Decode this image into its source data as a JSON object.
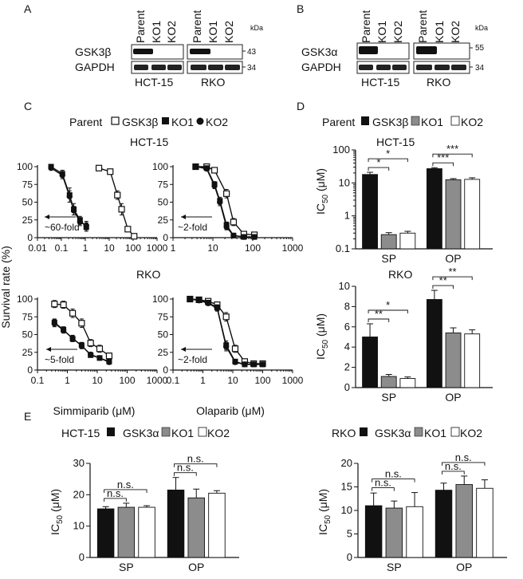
{
  "panels": {
    "A": {
      "letter": "A",
      "lanes": [
        "Parent",
        "KO1",
        "KO2",
        "Parent",
        "KO1",
        "KO2"
      ],
      "kda": "kDa",
      "bands": [
        {
          "label": "GSK3β",
          "kda": "43"
        },
        {
          "label": "GAPDH",
          "kda": "34"
        }
      ],
      "cell_lines": [
        "HCT-15",
        "RKO"
      ]
    },
    "B": {
      "letter": "B",
      "lanes": [
        "Parent",
        "KO1",
        "KO2",
        "Parent",
        "KO1",
        "KO2"
      ],
      "kda": "kDa",
      "bands": [
        {
          "label": "GSK3α",
          "kda": "55"
        },
        {
          "label": "GAPDH",
          "kda": "34"
        }
      ],
      "cell_lines": [
        "HCT-15",
        "RKO"
      ]
    },
    "C": {
      "letter": "C",
      "legend": [
        "Parent",
        "GSK3β",
        "KO1",
        "KO2"
      ],
      "ylabel": "Survival rate (%)",
      "row_titles": [
        "HCT-15",
        "RKO"
      ],
      "xlabels": [
        "Simmiparib (μM)",
        "Olaparib (μM)"
      ],
      "fold_labels": [
        "~60-fold",
        "~2-fold",
        "~5-fold",
        "~2-fold"
      ]
    },
    "D": {
      "letter": "D",
      "legend": [
        "Parent",
        "GSK3β",
        "KO1",
        "KO2"
      ],
      "ylabel": "IC",
      "ylabel_sub": "50",
      "ylabel_unit": " (μM)",
      "groups": [
        "SP",
        "OP"
      ],
      "row_titles": [
        "HCT-15",
        "RKO"
      ]
    },
    "E": {
      "letter": "E",
      "ylabel": "IC",
      "ylabel_sub": "50",
      "ylabel_unit": " (μM)",
      "groups": [
        "SP",
        "OP"
      ],
      "legends": [
        [
          "HCT-15",
          "GSK3α",
          "KO1",
          "KO2"
        ],
        [
          "RKO",
          "GSK3α",
          "KO1",
          "KO2"
        ]
      ]
    }
  },
  "colors": {
    "black": "#111111",
    "gray": "#8c8c8c",
    "white": "#ffffff"
  },
  "chart_data": [
    {
      "id": "C1",
      "type": "line",
      "xscale": "log",
      "xlim": [
        0.01,
        1000
      ],
      "ylim": [
        0,
        100
      ],
      "xticks": [
        "0.01",
        "0.1",
        "1",
        "10",
        "100",
        "1000"
      ],
      "yticks": [
        "0",
        "25",
        "50",
        "75",
        "100"
      ],
      "series": [
        {
          "name": "Parent",
          "marker": "square-open",
          "x": [
            3.7,
            11,
            22,
            33,
            60,
            110
          ],
          "y": [
            98,
            93,
            60,
            40,
            12,
            2
          ],
          "err": [
            2,
            3,
            6,
            8,
            3,
            2
          ]
        },
        {
          "name": "KO1",
          "marker": "square-filled",
          "x": [
            0.037,
            0.11,
            0.22,
            0.33,
            0.6,
            1.1
          ],
          "y": [
            100,
            90,
            60,
            40,
            25,
            15
          ],
          "err": [
            2,
            5,
            10,
            8,
            5,
            6
          ]
        },
        {
          "name": "KO2",
          "marker": "circle-filled",
          "x": [
            0.037,
            0.11,
            0.22,
            0.33,
            0.6,
            1.1
          ],
          "y": [
            98,
            88,
            58,
            38,
            22,
            17
          ],
          "err": [
            2,
            5,
            8,
            6,
            5,
            6
          ]
        }
      ]
    },
    {
      "id": "C2",
      "type": "line",
      "xscale": "log",
      "xlim": [
        1,
        1000
      ],
      "ylim": [
        0,
        100
      ],
      "xticks": [
        "1",
        "10",
        "100",
        "1000"
      ],
      "yticks": [
        "0",
        "25",
        "50",
        "75",
        "100"
      ],
      "series": [
        {
          "name": "Parent",
          "marker": "square-open",
          "x": [
            3.7,
            7,
            11,
            22,
            33,
            60,
            110
          ],
          "y": [
            100,
            100,
            95,
            62,
            22,
            5,
            4
          ],
          "err": [
            1,
            1,
            2,
            6,
            5,
            2,
            2
          ]
        },
        {
          "name": "KO1",
          "marker": "square-filled",
          "x": [
            3.7,
            7,
            11,
            15,
            22,
            33,
            60,
            110
          ],
          "y": [
            100,
            98,
            75,
            52,
            18,
            3,
            1,
            1
          ],
          "err": [
            1,
            2,
            4,
            5,
            4,
            2,
            1,
            1
          ]
        },
        {
          "name": "KO2",
          "marker": "circle-filled",
          "x": [
            3.7,
            7,
            11,
            15,
            22,
            33,
            60,
            110
          ],
          "y": [
            100,
            97,
            73,
            50,
            15,
            3,
            1,
            1
          ],
          "err": [
            1,
            2,
            4,
            5,
            4,
            2,
            1,
            1
          ]
        }
      ]
    },
    {
      "id": "C3",
      "type": "line",
      "xscale": "log",
      "xlim": [
        0.1,
        1000
      ],
      "ylim": [
        0,
        100
      ],
      "xticks": [
        "0.1",
        "1",
        "10",
        "100",
        "1000"
      ],
      "yticks": [
        "0",
        "25",
        "50",
        "75",
        "100"
      ],
      "series": [
        {
          "name": "Parent",
          "marker": "square-open",
          "x": [
            0.37,
            0.74,
            1.5,
            3,
            6,
            12,
            25
          ],
          "y": [
            93,
            92,
            80,
            66,
            38,
            30,
            20
          ],
          "err": [
            5,
            5,
            6,
            6,
            5,
            5,
            4
          ]
        },
        {
          "name": "KO1",
          "marker": "square-filled",
          "x": [
            0.37,
            0.74,
            1.5,
            3,
            6,
            12,
            25
          ],
          "y": [
            67,
            57,
            44,
            35,
            21,
            17,
            12
          ],
          "err": [
            5,
            4,
            4,
            4,
            3,
            3,
            3
          ]
        },
        {
          "name": "KO2",
          "marker": "circle-filled",
          "x": [
            0.37,
            0.74,
            1.5,
            3,
            6,
            12,
            25
          ],
          "y": [
            66,
            56,
            45,
            34,
            22,
            17,
            11
          ],
          "err": [
            5,
            4,
            4,
            4,
            3,
            3,
            3
          ]
        }
      ]
    },
    {
      "id": "C4",
      "type": "line",
      "xscale": "log",
      "xlim": [
        0.1,
        1000
      ],
      "ylim": [
        0,
        100
      ],
      "xticks": [
        "0.1",
        "1",
        "10",
        "100",
        "1000"
      ],
      "yticks": [
        "0",
        "25",
        "50",
        "75",
        "100"
      ],
      "series": [
        {
          "name": "Parent",
          "marker": "square-open",
          "x": [
            0.37,
            0.74,
            1.5,
            3,
            6,
            12,
            25,
            50,
            100
          ],
          "y": [
            100,
            99,
            97,
            92,
            75,
            30,
            12,
            9,
            9
          ],
          "err": [
            2,
            2,
            3,
            3,
            6,
            5,
            3,
            2,
            2
          ]
        },
        {
          "name": "KO1",
          "marker": "square-filled",
          "x": [
            0.37,
            0.74,
            1.5,
            3,
            6,
            12,
            25,
            50,
            100
          ],
          "y": [
            100,
            99,
            95,
            88,
            35,
            12,
            8,
            8,
            8
          ],
          "err": [
            2,
            2,
            3,
            4,
            6,
            3,
            2,
            2,
            2
          ]
        },
        {
          "name": "KO2",
          "marker": "circle-filled",
          "x": [
            0.37,
            0.74,
            1.5,
            3,
            6,
            12,
            25,
            50,
            100
          ],
          "y": [
            100,
            98,
            94,
            87,
            33,
            11,
            8,
            8,
            8
          ],
          "err": [
            2,
            2,
            3,
            4,
            6,
            3,
            2,
            2,
            2
          ]
        }
      ]
    },
    {
      "id": "D1",
      "type": "bar",
      "yscale": "log",
      "ylim": [
        0.1,
        100
      ],
      "yticks": [
        "0.1",
        "1",
        "10",
        "100"
      ],
      "categories": [
        "SP",
        "OP"
      ],
      "series": [
        {
          "name": "Parent",
          "values": [
            18,
            27
          ],
          "err": [
            3,
            2
          ]
        },
        {
          "name": "KO1",
          "values": [
            0.27,
            12.5
          ],
          "err": [
            0.04,
            1
          ]
        },
        {
          "name": "KO2",
          "values": [
            0.3,
            12.8
          ],
          "err": [
            0.04,
            1.5
          ]
        }
      ],
      "significance": [
        {
          "group": 0,
          "from": 0,
          "to": 1,
          "label": "*"
        },
        {
          "group": 0,
          "from": 0,
          "to": 2,
          "label": "*"
        },
        {
          "group": 1,
          "from": 0,
          "to": 1,
          "label": "***"
        },
        {
          "group": 1,
          "from": 0,
          "to": 2,
          "label": "***"
        }
      ]
    },
    {
      "id": "D2",
      "type": "bar",
      "yscale": "linear",
      "ylim": [
        0,
        10
      ],
      "yticks": [
        "0",
        "2",
        "4",
        "6",
        "8",
        "10"
      ],
      "categories": [
        "SP",
        "OP"
      ],
      "series": [
        {
          "name": "Parent",
          "values": [
            5.0,
            8.7
          ],
          "err": [
            1.3,
            0.9
          ]
        },
        {
          "name": "KO1",
          "values": [
            1.1,
            5.4
          ],
          "err": [
            0.2,
            0.5
          ]
        },
        {
          "name": "KO2",
          "values": [
            0.9,
            5.3
          ],
          "err": [
            0.15,
            0.4
          ]
        }
      ],
      "significance": [
        {
          "group": 0,
          "from": 0,
          "to": 1,
          "label": "**"
        },
        {
          "group": 0,
          "from": 0,
          "to": 2,
          "label": "*"
        },
        {
          "group": 1,
          "from": 0,
          "to": 1,
          "label": "**"
        },
        {
          "group": 1,
          "from": 0,
          "to": 2,
          "label": "**"
        }
      ]
    },
    {
      "id": "E1",
      "type": "bar",
      "yscale": "linear",
      "ylim": [
        0,
        30
      ],
      "yticks": [
        "0",
        "10",
        "20",
        "30"
      ],
      "categories": [
        "SP",
        "OP"
      ],
      "series": [
        {
          "name": "GSK3α",
          "values": [
            15.5,
            21.5
          ],
          "err": [
            0.7,
            4
          ]
        },
        {
          "name": "KO1",
          "values": [
            16,
            19
          ],
          "err": [
            1.3,
            2.8
          ]
        },
        {
          "name": "KO2",
          "values": [
            16,
            20.5
          ],
          "err": [
            0.5,
            0.8
          ]
        }
      ],
      "significance": [
        {
          "group": 0,
          "from": 0,
          "to": 1,
          "label": "n.s."
        },
        {
          "group": 0,
          "from": 0,
          "to": 2,
          "label": "n.s."
        },
        {
          "group": 1,
          "from": 0,
          "to": 1,
          "label": "n.s."
        },
        {
          "group": 1,
          "from": 0,
          "to": 2,
          "label": "n.s."
        }
      ]
    },
    {
      "id": "E2",
      "type": "bar",
      "yscale": "linear",
      "ylim": [
        0,
        20
      ],
      "yticks": [
        "0",
        "5",
        "10",
        "15",
        "20"
      ],
      "categories": [
        "SP",
        "OP"
      ],
      "series": [
        {
          "name": "GSK3α",
          "values": [
            11,
            14.3
          ],
          "err": [
            2.7,
            1.5
          ]
        },
        {
          "name": "KO1",
          "values": [
            10.5,
            15.5
          ],
          "err": [
            1.5,
            1.8
          ]
        },
        {
          "name": "KO2",
          "values": [
            10.8,
            14.7
          ],
          "err": [
            3,
            1.8
          ]
        }
      ],
      "significance": [
        {
          "group": 0,
          "from": 0,
          "to": 1,
          "label": "n.s."
        },
        {
          "group": 0,
          "from": 0,
          "to": 2,
          "label": "n.s."
        },
        {
          "group": 1,
          "from": 0,
          "to": 1,
          "label": "n.s."
        },
        {
          "group": 1,
          "from": 0,
          "to": 2,
          "label": "n.s."
        }
      ]
    }
  ]
}
